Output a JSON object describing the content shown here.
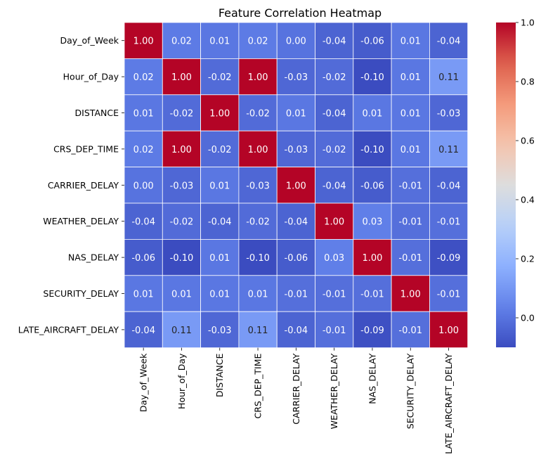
{
  "chart_data": {
    "type": "heatmap",
    "title": "Feature Correlation Heatmap",
    "labels": [
      "Day_of_Week",
      "Hour_of_Day",
      "DISTANCE",
      "CRS_DEP_TIME",
      "CARRIER_DELAY",
      "WEATHER_DELAY",
      "NAS_DELAY",
      "SECURITY_DELAY",
      "LATE_AIRCRAFT_DELAY"
    ],
    "matrix": [
      [
        1.0,
        0.02,
        0.01,
        0.02,
        -0.0,
        -0.04,
        -0.06,
        0.01,
        -0.04
      ],
      [
        0.02,
        1.0,
        -0.02,
        1.0,
        -0.03,
        -0.02,
        -0.1,
        0.01,
        0.11
      ],
      [
        0.01,
        -0.02,
        1.0,
        -0.02,
        0.01,
        -0.04,
        0.01,
        0.01,
        -0.03
      ],
      [
        0.02,
        1.0,
        -0.02,
        1.0,
        -0.03,
        -0.02,
        -0.1,
        0.01,
        0.11
      ],
      [
        -0.0,
        -0.03,
        0.01,
        -0.03,
        1.0,
        -0.04,
        -0.06,
        -0.01,
        -0.04
      ],
      [
        -0.04,
        -0.02,
        -0.04,
        -0.02,
        -0.04,
        1.0,
        0.03,
        -0.01,
        -0.01
      ],
      [
        -0.06,
        -0.1,
        0.01,
        -0.1,
        -0.06,
        0.03,
        1.0,
        -0.01,
        -0.09
      ],
      [
        0.01,
        0.01,
        0.01,
        0.01,
        -0.01,
        -0.01,
        -0.01,
        1.0,
        -0.01
      ],
      [
        -0.04,
        0.11,
        -0.03,
        0.11,
        -0.04,
        -0.01,
        -0.09,
        -0.01,
        1.0
      ]
    ],
    "value_format_decimals": 2,
    "colormap": "coolwarm",
    "color_range": [
      -0.1,
      1.0
    ],
    "colorbar_ticks": [
      "0.0",
      "0.2",
      "0.4",
      "0.6",
      "0.8",
      "1.0"
    ],
    "colorbar_tick_values": [
      0.0,
      0.2,
      0.4,
      0.6,
      0.8,
      1.0
    ],
    "grid_line_color": "#ffffff"
  }
}
